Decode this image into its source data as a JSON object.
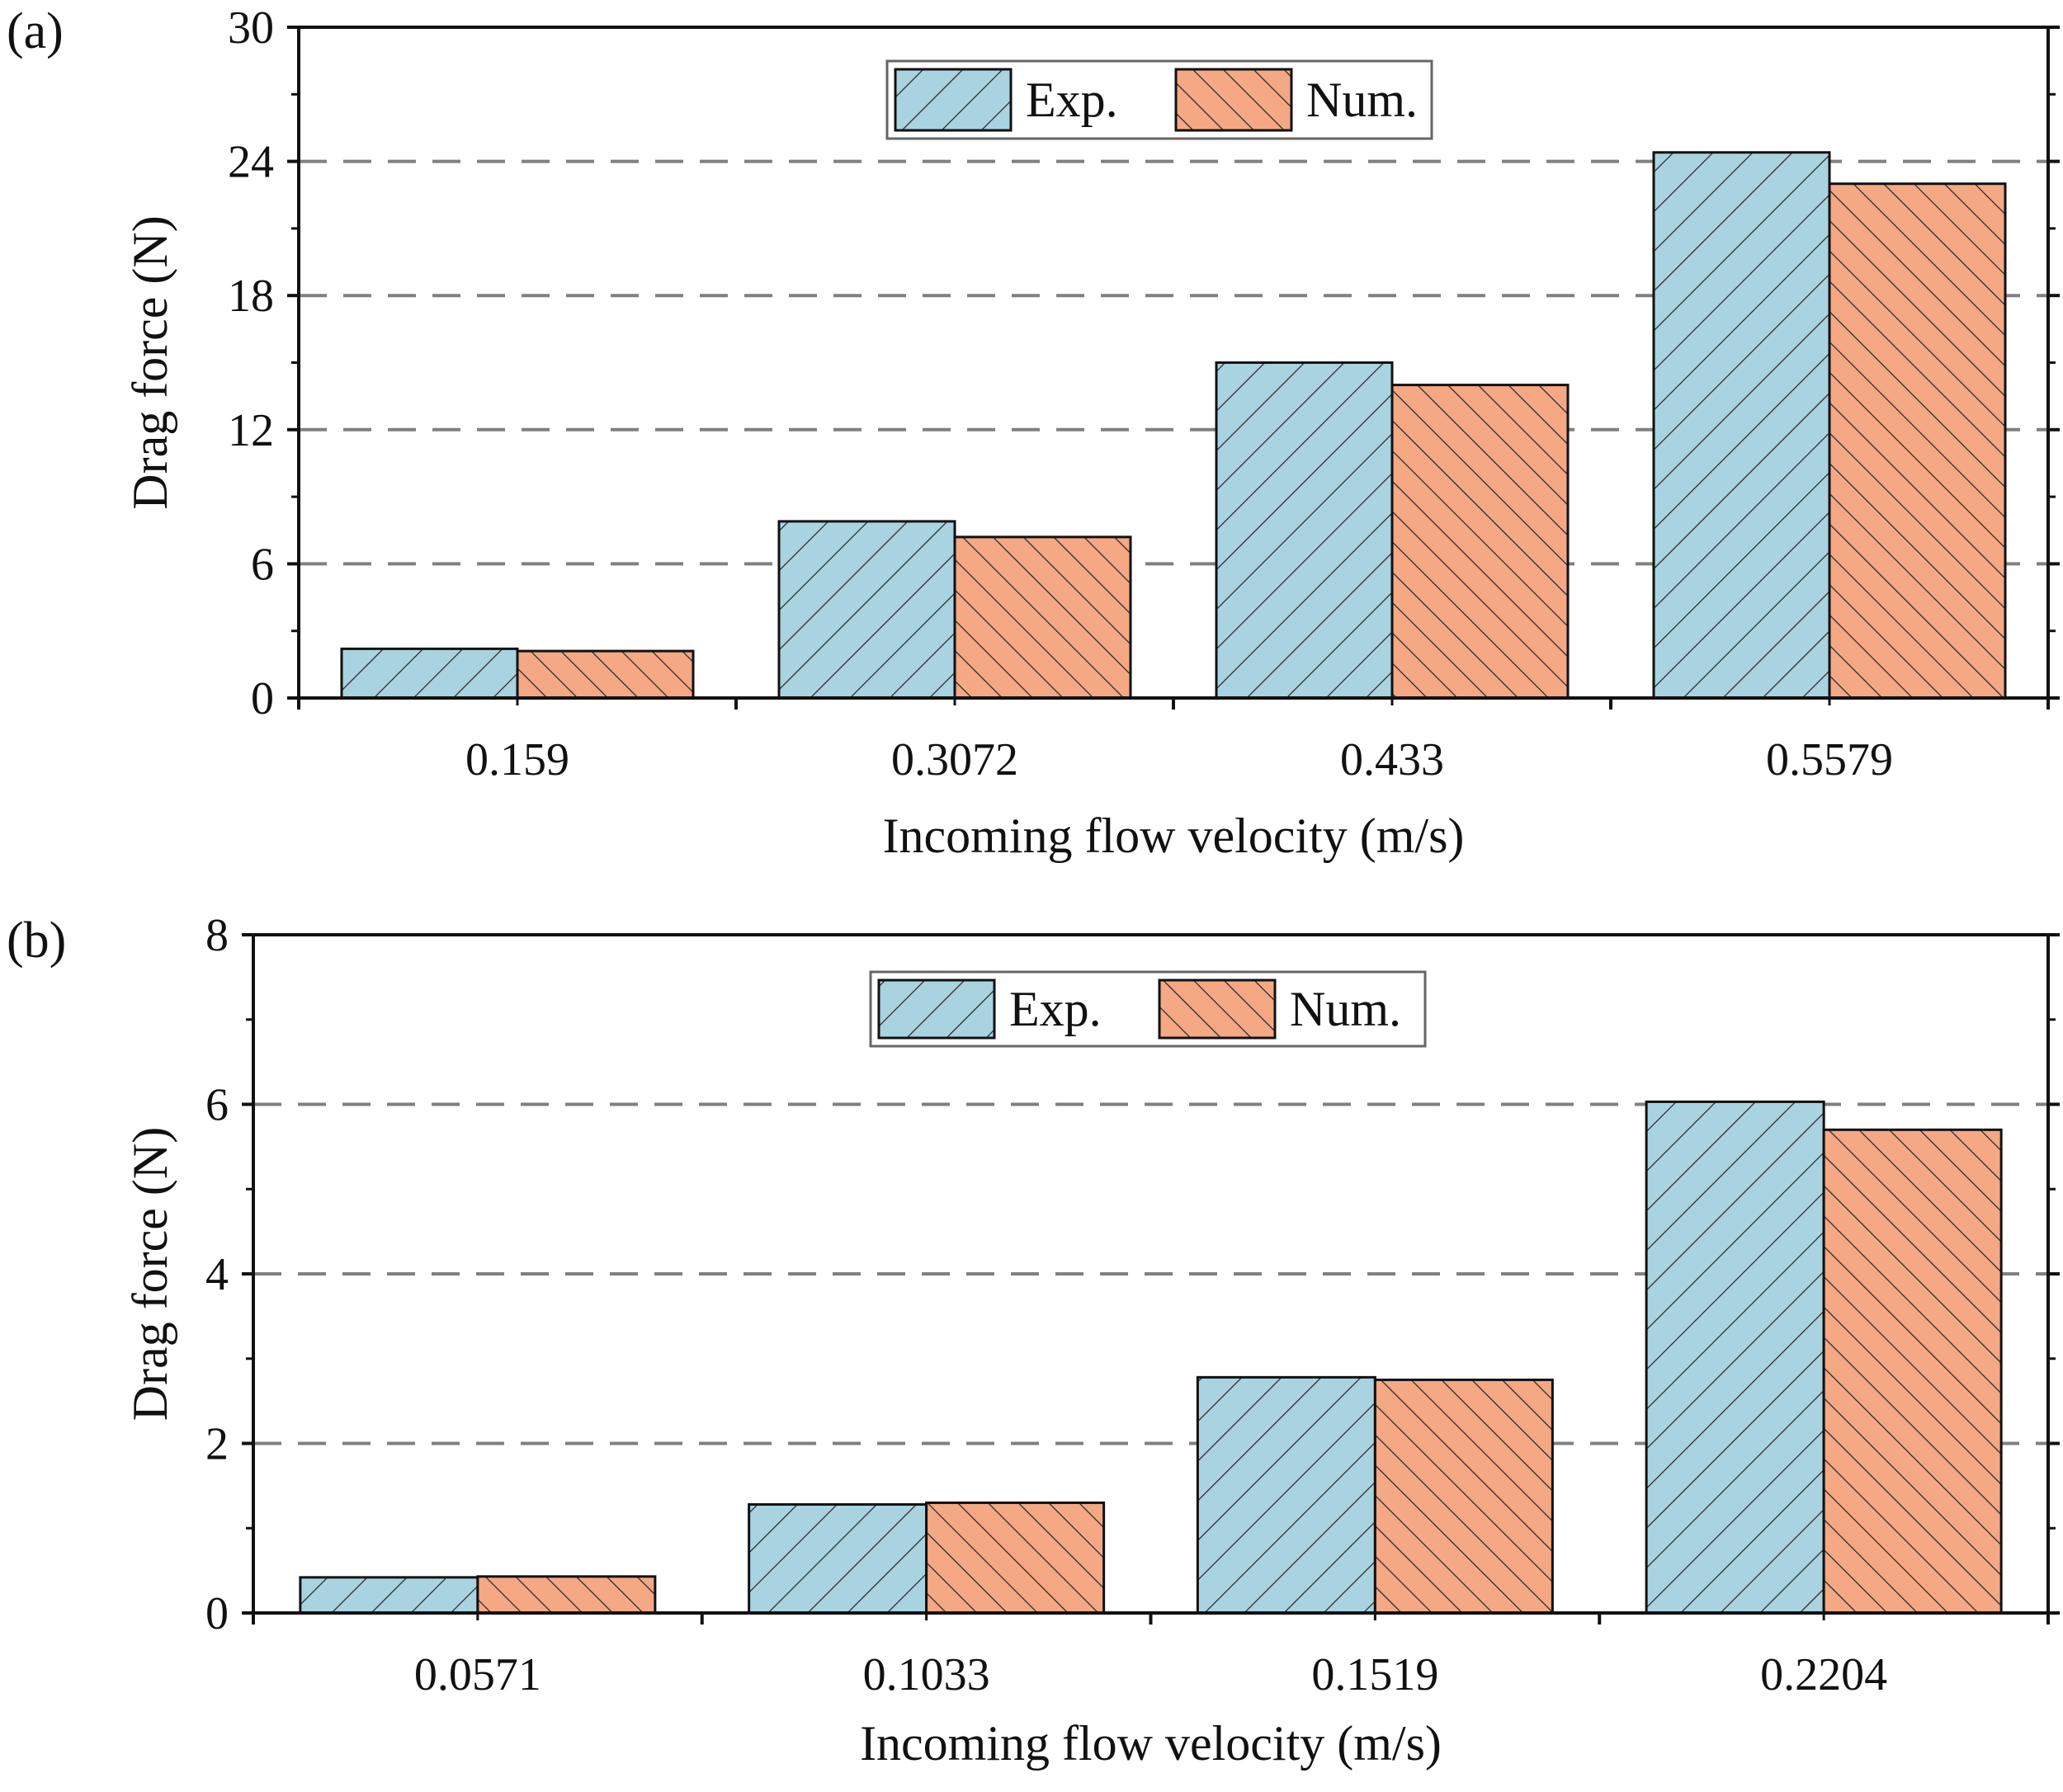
{
  "colors": {
    "exp": "#a9d3e0",
    "num": "#f4a883",
    "grid": "#808080",
    "axis": "#111111"
  },
  "chart_data": [
    {
      "panel_label": "(a)",
      "type": "bar",
      "categories": [
        "0.159",
        "0.3072",
        "0.433",
        "0.5579"
      ],
      "series": [
        {
          "name": "Exp.",
          "values": [
            2.2,
            7.9,
            15.0,
            24.4
          ],
          "pattern": "hatch-forward"
        },
        {
          "name": "Num.",
          "values": [
            2.1,
            7.2,
            14.0,
            23.0
          ],
          "pattern": "hatch-back"
        }
      ],
      "xlabel": "Incoming flow velocity (m/s)",
      "ylabel": "Drag force (N)",
      "ylim": [
        0,
        30
      ],
      "yticks": [
        0,
        6,
        12,
        18,
        24,
        30
      ],
      "ytick_labels": [
        "0",
        "6",
        "12",
        "18",
        "24",
        "30"
      ],
      "grid": "dashed horizontal",
      "legend": "top-center"
    },
    {
      "panel_label": "(b)",
      "type": "bar",
      "categories": [
        "0.0571",
        "0.1033",
        "0.1519",
        "0.2204"
      ],
      "series": [
        {
          "name": "Exp.",
          "values": [
            0.42,
            1.28,
            2.78,
            6.03
          ],
          "pattern": "hatch-forward"
        },
        {
          "name": "Num.",
          "values": [
            0.43,
            1.3,
            2.75,
            5.7
          ],
          "pattern": "hatch-back"
        }
      ],
      "xlabel": "Incoming flow velocity (m/s)",
      "ylabel": "Drag force (N)",
      "ylim": [
        0,
        8
      ],
      "yticks": [
        0,
        2,
        4,
        6,
        8
      ],
      "ytick_labels": [
        "0",
        "2",
        "4",
        "6",
        "8"
      ],
      "grid": "dashed horizontal",
      "legend": "top-center"
    }
  ]
}
